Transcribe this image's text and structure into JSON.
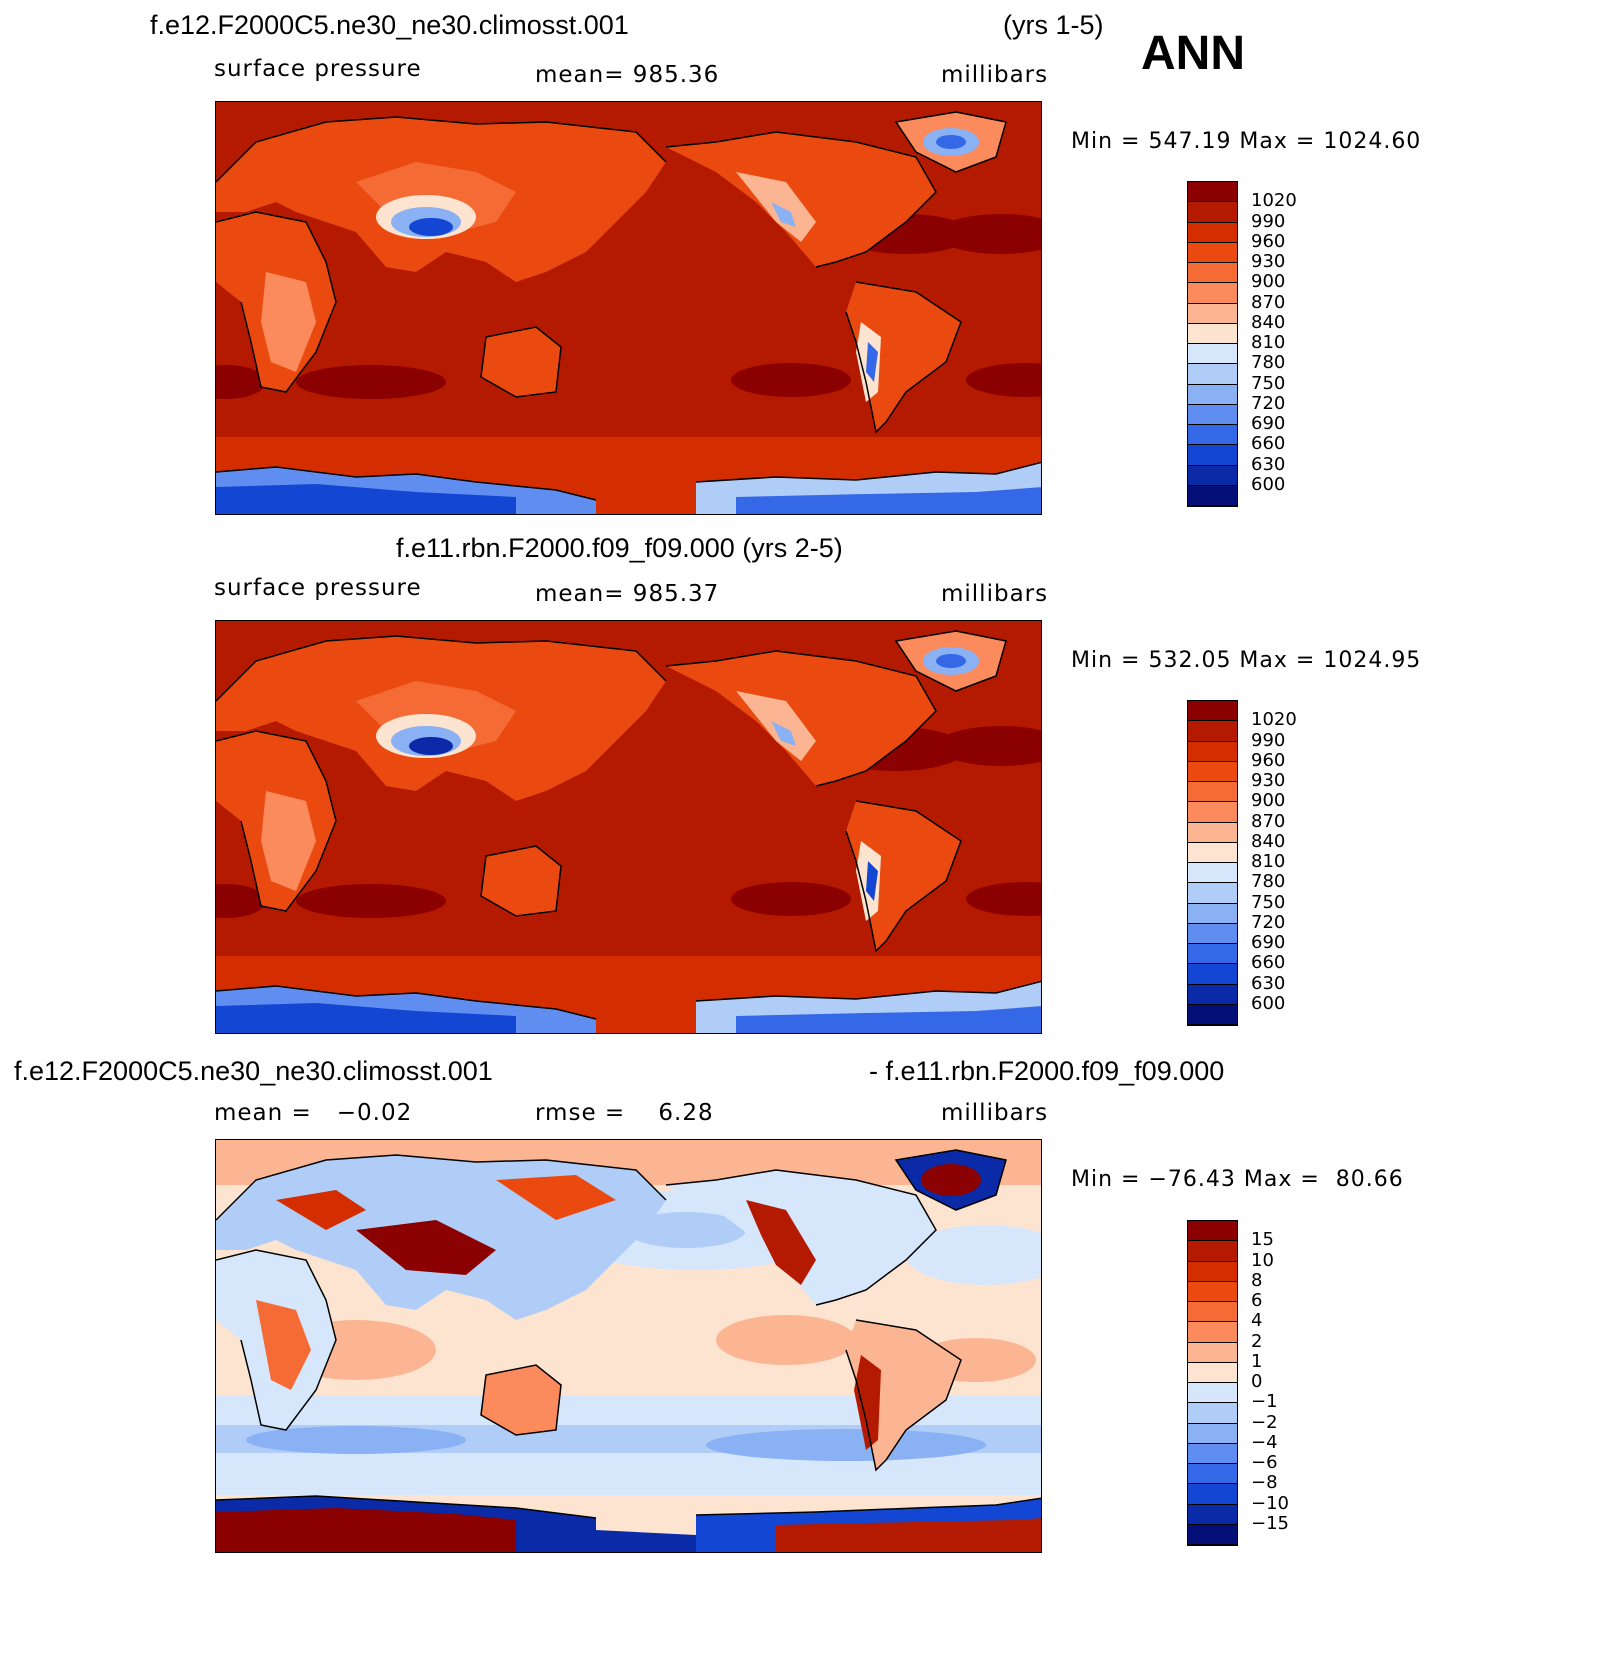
{
  "season": "ANN",
  "panels": [
    {
      "title_left": "f.e12.F2000C5.ne30_ne30.climosst.001",
      "title_right": "(yrs 1-5)",
      "sub_left": "surface pressure",
      "sub_mid": "mean= 985.36",
      "sub_right": "millibars",
      "minmax": "Min = 547.19 Max = 1024.60"
    },
    {
      "title_center": "f.e11.rbn.F2000.f09_f09.000 (yrs 2-5)",
      "sub_left": "surface pressure",
      "sub_mid": "mean= 985.37",
      "sub_right": "millibars",
      "minmax": "Min = 532.05 Max = 1024.95"
    },
    {
      "title_left": "f.e12.F2000C5.ne30_ne30.climosst.001",
      "title_right": "- f.e11.rbn.F2000.f09_f09.000",
      "sub_left": "mean =   −0.02",
      "sub_mid": "rmse =    6.28",
      "sub_right": "millibars",
      "minmax": "Min = −76.43 Max =  80.66"
    }
  ],
  "colorbars": {
    "pressure": {
      "labels": [
        "1020",
        "990",
        "960",
        "930",
        "900",
        "870",
        "840",
        "810",
        "780",
        "750",
        "720",
        "690",
        "660",
        "630",
        "600"
      ],
      "colors": [
        "#8b0000",
        "#b41a00",
        "#d42e00",
        "#ea4a10",
        "#f56b35",
        "#fb8b5d",
        "#fcb592",
        "#fde4d0",
        "#d6e6fb",
        "#b0cdf8",
        "#8ab1f4",
        "#5f8ef0",
        "#3468e6",
        "#1446d4",
        "#0a2aa8",
        "#050f78"
      ]
    },
    "difference": {
      "labels": [
        "15",
        "10",
        "8",
        "6",
        "4",
        "2",
        "1",
        "0",
        "−1",
        "−2",
        "−4",
        "−6",
        "−8",
        "−10",
        "−15"
      ],
      "colors": [
        "#8b0000",
        "#b41a00",
        "#d42e00",
        "#ea4a10",
        "#f56b35",
        "#fb8b5d",
        "#fcb592",
        "#fde4d0",
        "#d6e6fb",
        "#b0cdf8",
        "#8ab1f4",
        "#5f8ef0",
        "#3468e6",
        "#1446d4",
        "#0a2aa8",
        "#050f78"
      ]
    }
  }
}
